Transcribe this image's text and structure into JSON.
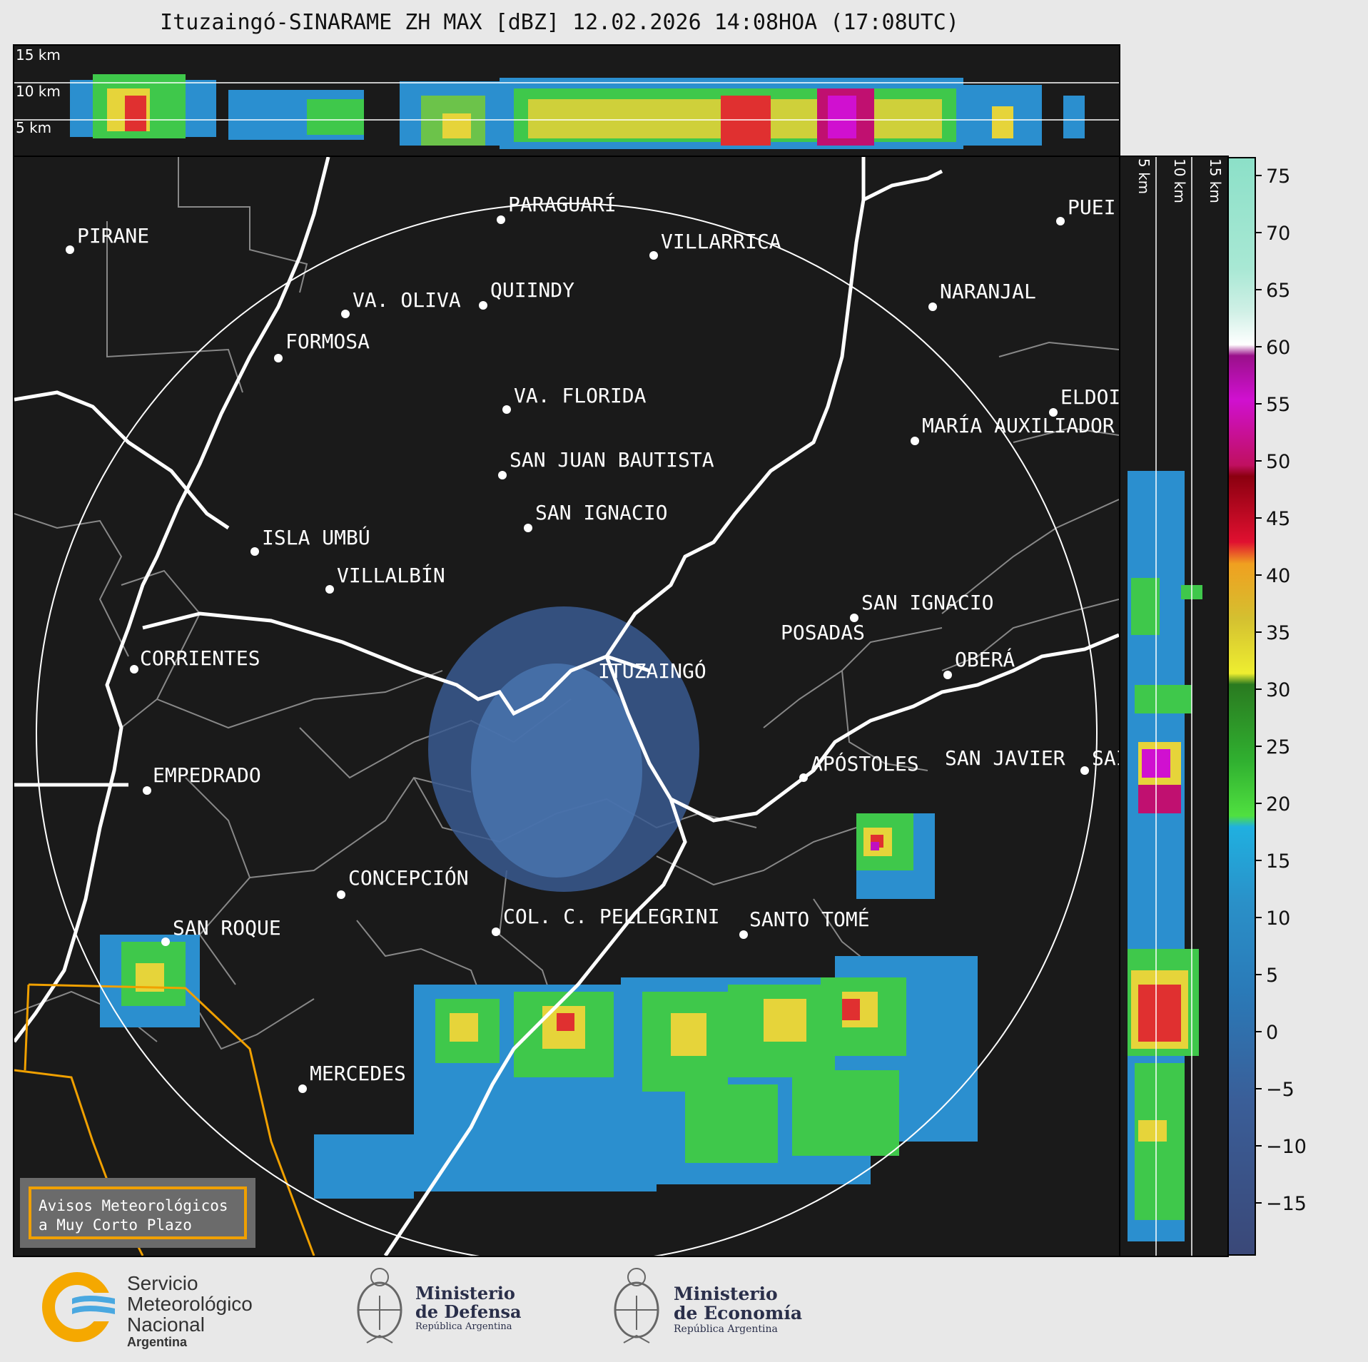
{
  "title": "Ituzaingó-SINARAME ZH MAX [dBZ] 12.02.2026 14:08HOA (17:08UTC)",
  "top_profile": {
    "labels": [
      "15 km",
      "10 km",
      "5 km"
    ]
  },
  "side_profile": {
    "labels": [
      "5 km",
      "10 km",
      "15 km"
    ]
  },
  "colorbar": {
    "ticks": [
      "75",
      "70",
      "65",
      "60",
      "55",
      "50",
      "45",
      "40",
      "35",
      "30",
      "25",
      "20",
      "15",
      "10",
      "5",
      "0",
      "−5",
      "−10",
      "−15"
    ],
    "range": [
      -20,
      77
    ]
  },
  "cities": [
    {
      "name": "PIRANE"
    },
    {
      "name": "PARAGUARÍ"
    },
    {
      "name": "VILLARRICA"
    },
    {
      "name": "QUIINDY"
    },
    {
      "name": "VA. OLIVA"
    },
    {
      "name": "NARANJAL"
    },
    {
      "name": "FORMOSA"
    },
    {
      "name": "PUEI"
    },
    {
      "name": "VA. FLORIDA"
    },
    {
      "name": "ELDOI"
    },
    {
      "name": "MARÍA AUXILIADOR"
    },
    {
      "name": "SAN JUAN BAUTISTA"
    },
    {
      "name": "SAN IGNACIO"
    },
    {
      "name": "ISLA UMBÚ"
    },
    {
      "name": "VILLALBÍN"
    },
    {
      "name": "SAN IGNACIO"
    },
    {
      "name": "POSADAS"
    },
    {
      "name": "CORRIENTES"
    },
    {
      "name": "ITUZAINGÓ"
    },
    {
      "name": "OBERÁ"
    },
    {
      "name": "APÓSTOLES"
    },
    {
      "name": "SAN JAVIER"
    },
    {
      "name": "SAI"
    },
    {
      "name": "EMPEDRADO"
    },
    {
      "name": "CONCEPCIÓN"
    },
    {
      "name": "COL. C. PELLEGRINI"
    },
    {
      "name": "SANTO TOMÉ"
    },
    {
      "name": "SAN ROQUE"
    },
    {
      "name": "MERCEDES"
    }
  ],
  "warning_box": {
    "line1": "Avisos Meteorológicos",
    "line2": "a Muy Corto Plazo"
  },
  "footer": {
    "smn": {
      "line1": "Servicio",
      "line2": "Meteorológico",
      "line3": "Nacional",
      "line4": "Argentina"
    },
    "defensa": {
      "line1": "Ministerio",
      "line2": "de Defensa",
      "line3": "República Argentina"
    },
    "economia": {
      "line1": "Ministerio",
      "line2": "de Economía",
      "line3": "República Argentina"
    }
  },
  "colors": {
    "background": "#1a1a1a",
    "river": "#ffffff",
    "warning": "#f0a000",
    "border": "#888888"
  }
}
